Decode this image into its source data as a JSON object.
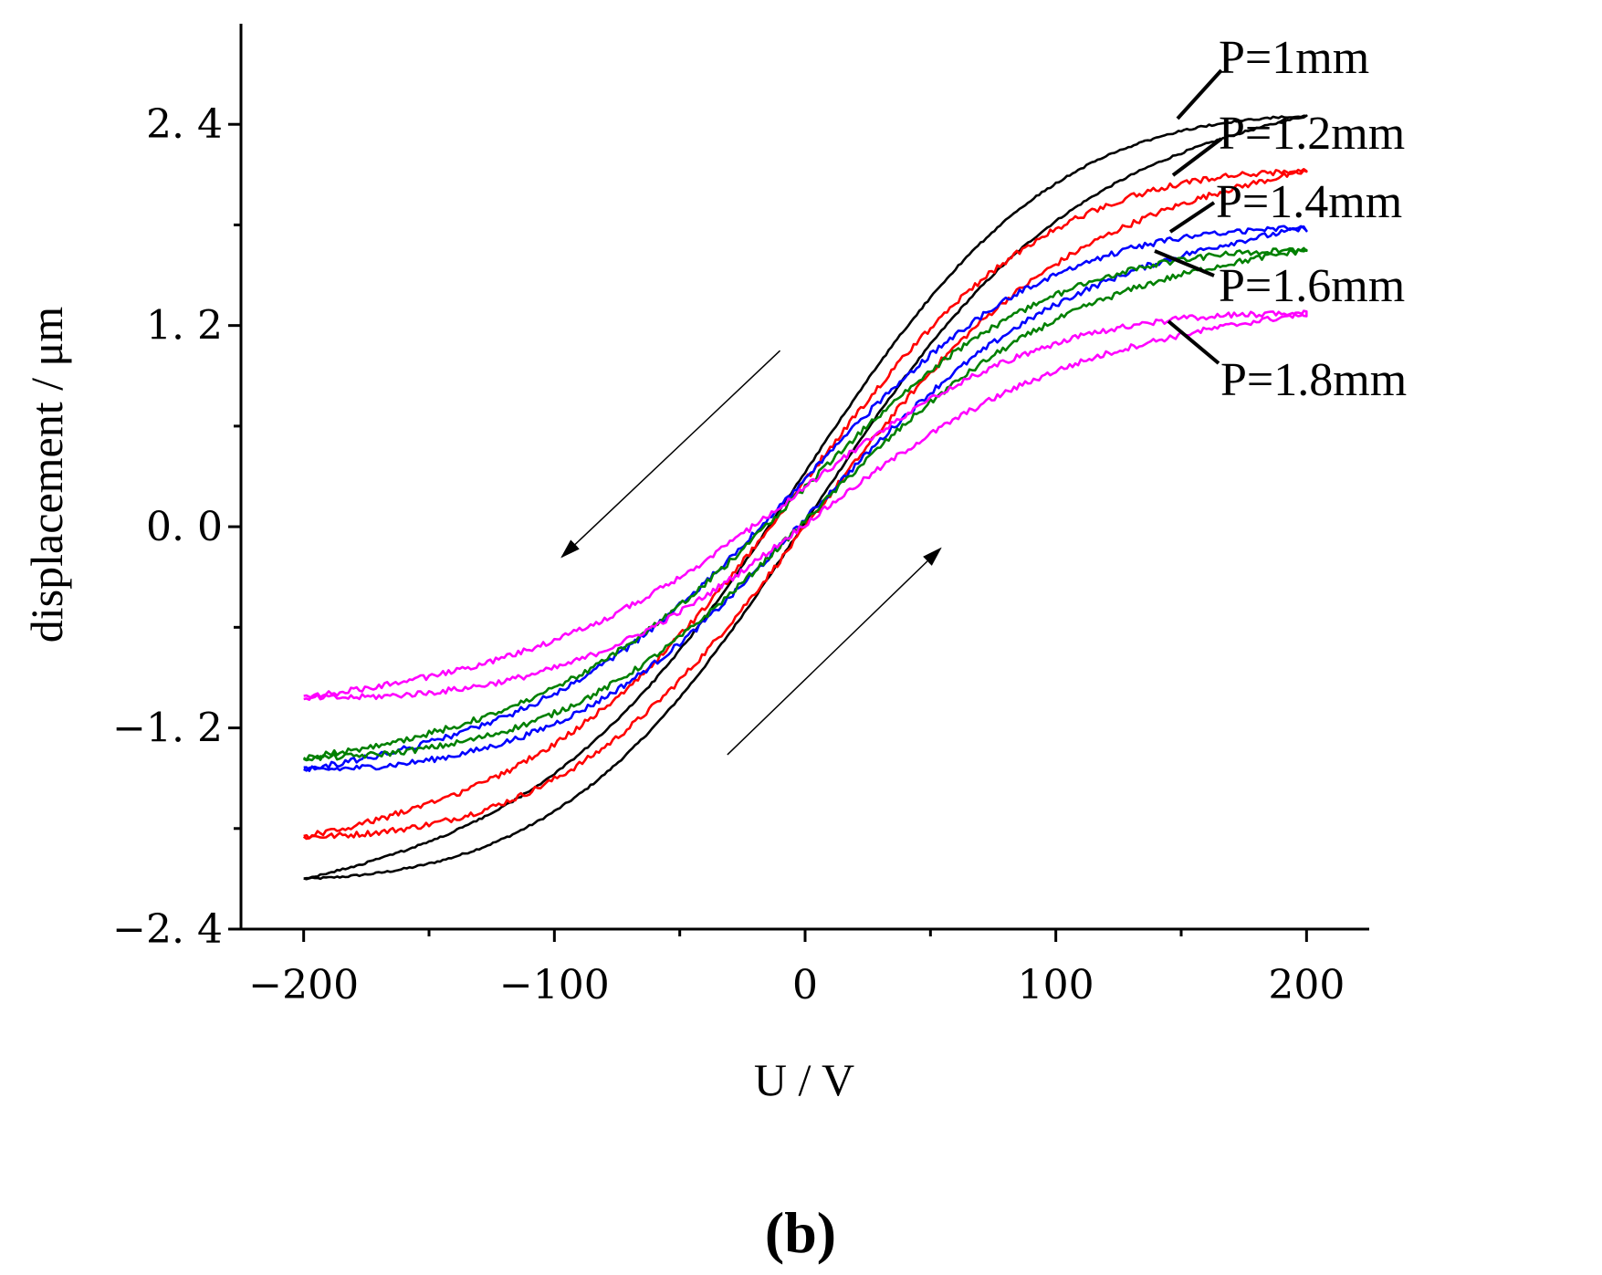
{
  "chart_data": {
    "type": "line",
    "title": "",
    "xlabel": "U / V",
    "ylabel": "displacement / μm",
    "xlim": [
      -225,
      225
    ],
    "ylim": [
      -2.4,
      3.0
    ],
    "xticks": [
      -200,
      -100,
      0,
      100,
      200
    ],
    "xtick_labels": [
      "−200",
      "−100",
      "0",
      "100",
      "200"
    ],
    "xminor": [
      -150,
      -50,
      50,
      150
    ],
    "yticks": [
      -2.4,
      -1.2,
      0.0,
      1.2,
      2.4
    ],
    "ytick_labels": [
      "−2. 4",
      "−1. 2",
      "0. 0",
      "1. 2",
      "2. 4"
    ],
    "yminor": [
      -1.8,
      -0.6,
      0.6,
      1.8
    ],
    "grid": false,
    "panel_label": "(b)",
    "series": [
      {
        "name": "P=1mm",
        "color": "#000000",
        "y_min": -2.1,
        "y_max": 2.45,
        "branch_gap": 0.15,
        "x_range": [
          -200,
          200
        ]
      },
      {
        "name": "P=1.2mm",
        "color": "#ff0000",
        "y_min": -1.85,
        "y_max": 2.12,
        "branch_gap": 0.14,
        "x_range": [
          -200,
          200
        ]
      },
      {
        "name": "P=1.4mm",
        "color": "#0000ff",
        "y_min": -1.45,
        "y_max": 1.78,
        "branch_gap": 0.12,
        "x_range": [
          -200,
          200
        ]
      },
      {
        "name": "P=1.6mm",
        "color": "#008000",
        "y_min": -1.38,
        "y_max": 1.65,
        "branch_gap": 0.1,
        "x_range": [
          -200,
          200
        ]
      },
      {
        "name": "P=1.8mm",
        "color": "#ff00ff",
        "y_min": -1.02,
        "y_max": 1.27,
        "branch_gap": 0.11,
        "x_range": [
          -200,
          200
        ]
      }
    ],
    "legend_labels": [
      "P=1mm",
      "P=1.2mm",
      "P=1.4mm",
      "P=1.6mm",
      "P=1.8mm"
    ],
    "annotations": [
      {
        "type": "arrow",
        "direction": "decreasing-voltage",
        "from": [
          -10,
          1.05
        ],
        "to": [
          -97,
          -0.18
        ]
      },
      {
        "type": "arrow",
        "direction": "increasing-voltage",
        "from": [
          -31,
          -1.36
        ],
        "to": [
          54,
          -0.13
        ]
      }
    ]
  }
}
